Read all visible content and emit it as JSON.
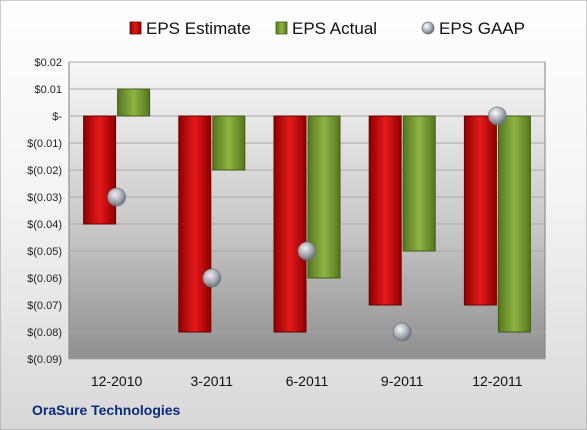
{
  "chart_data": {
    "type": "bar",
    "categories": [
      "12-2010",
      "3-2011",
      "6-2011",
      "9-2011",
      "12-2011"
    ],
    "series": [
      {
        "name": "EPS Estimate",
        "kind": "bar",
        "color": "#cc1111",
        "values": [
          -0.04,
          -0.08,
          -0.08,
          -0.07,
          -0.07
        ]
      },
      {
        "name": "EPS Actual",
        "kind": "bar",
        "color": "#7ea534",
        "values": [
          0.01,
          -0.02,
          -0.06,
          -0.05,
          -0.08
        ]
      },
      {
        "name": "EPS GAAP",
        "kind": "scatter",
        "color": "#9aa4b0",
        "values": [
          -0.03,
          -0.06,
          -0.05,
          -0.08,
          0.0
        ]
      }
    ],
    "y_ticks": [
      0.02,
      0.01,
      0.0,
      -0.01,
      -0.02,
      -0.03,
      -0.04,
      -0.05,
      -0.06,
      -0.07,
      -0.08,
      -0.09
    ],
    "y_tick_labels": [
      "$0.02",
      "$0.01",
      "$-",
      "$(0.01)",
      "$(0.02)",
      "$(0.03)",
      "$(0.04)",
      "$(0.05)",
      "$(0.06)",
      "$(0.07)",
      "$(0.08)",
      "$(0.09)"
    ],
    "ylim": [
      -0.09,
      0.02
    ],
    "grid": true,
    "legend_placement": "top"
  },
  "footer": {
    "company": "OraSure Technologies"
  }
}
